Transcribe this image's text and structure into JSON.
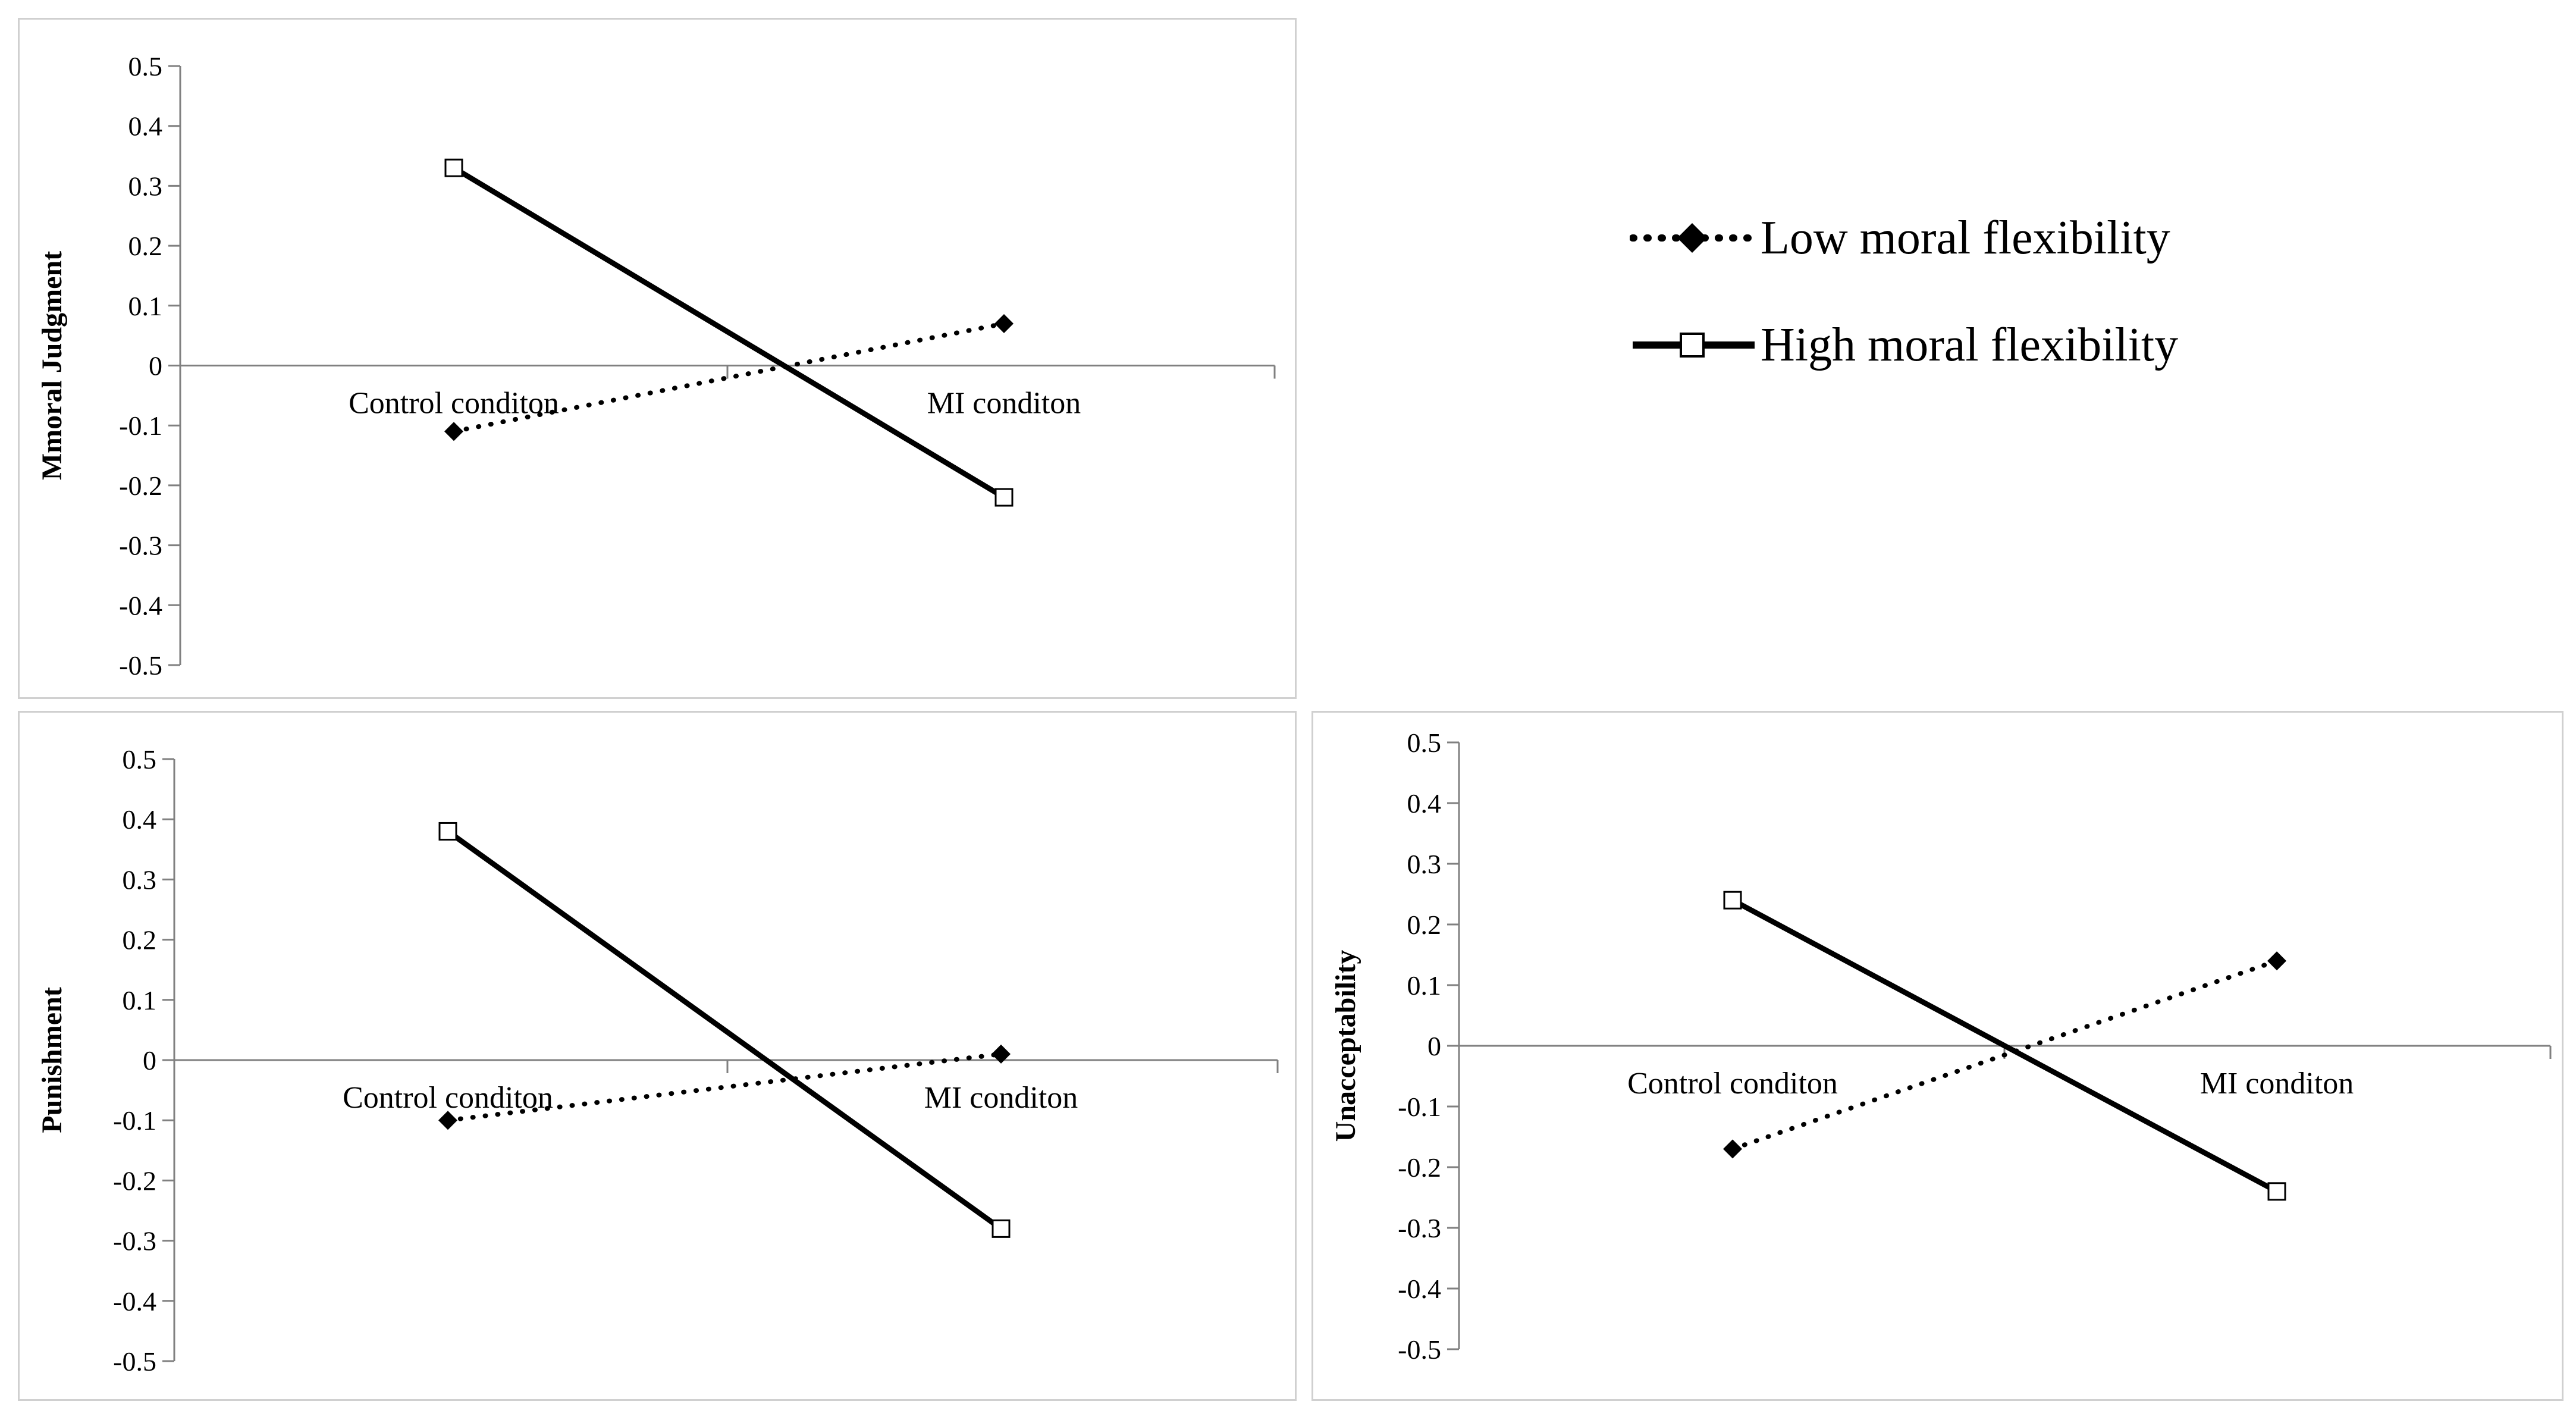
{
  "legend": {
    "low_label": "Low moral flexibility",
    "high_label": "High moral flexibility"
  },
  "colors": {
    "line": "#000000",
    "axis": "#808080",
    "border": "#d0d0d0"
  },
  "chart_data": [
    {
      "type": "line",
      "title": "",
      "xlabel": "",
      "ylabel": "Mmoral Judgment",
      "categories": [
        "Control conditon",
        "MI  conditon"
      ],
      "ylim": [
        -0.5,
        0.5
      ],
      "yticks": [
        "0.5",
        "0.4",
        "0.3",
        "0.2",
        "0.1",
        "0",
        "-0.1",
        "-0.2",
        "-0.3",
        "-0.4",
        "-0.5"
      ],
      "series": [
        {
          "name": "Low moral flexibility",
          "style": "dotted-diamond",
          "values": [
            -0.11,
            0.07
          ]
        },
        {
          "name": "High moral flexibility",
          "style": "solid-square",
          "values": [
            0.33,
            -0.22
          ]
        }
      ]
    },
    {
      "type": "line",
      "title": "",
      "xlabel": "",
      "ylabel": "Punishment",
      "categories": [
        "Control conditon",
        "MI  conditon"
      ],
      "ylim": [
        -0.5,
        0.5
      ],
      "yticks": [
        "0.5",
        "0.4",
        "0.3",
        "0.2",
        "0.1",
        "0",
        "-0.1",
        "-0.2",
        "-0.3",
        "-0.4",
        "-0.5"
      ],
      "series": [
        {
          "name": "Low moral flexibility",
          "style": "dotted-diamond",
          "values": [
            -0.1,
            0.01
          ]
        },
        {
          "name": "High moral flexibility",
          "style": "solid-square",
          "values": [
            0.38,
            -0.28
          ]
        }
      ]
    },
    {
      "type": "line",
      "title": "",
      "xlabel": "",
      "ylabel": "Unacceptability",
      "categories": [
        "Control conditon",
        "MI  conditon"
      ],
      "ylim": [
        -0.5,
        0.5
      ],
      "yticks": [
        "0.5",
        "0.4",
        "0.3",
        "0.2",
        "0.1",
        "0",
        "-0.1",
        "-0.2",
        "-0.3",
        "-0.4",
        "-0.5"
      ],
      "series": [
        {
          "name": "Low moral flexibility",
          "style": "dotted-diamond",
          "values": [
            -0.17,
            0.14
          ]
        },
        {
          "name": "High moral flexibility",
          "style": "solid-square",
          "values": [
            0.24,
            -0.24
          ]
        }
      ]
    }
  ]
}
